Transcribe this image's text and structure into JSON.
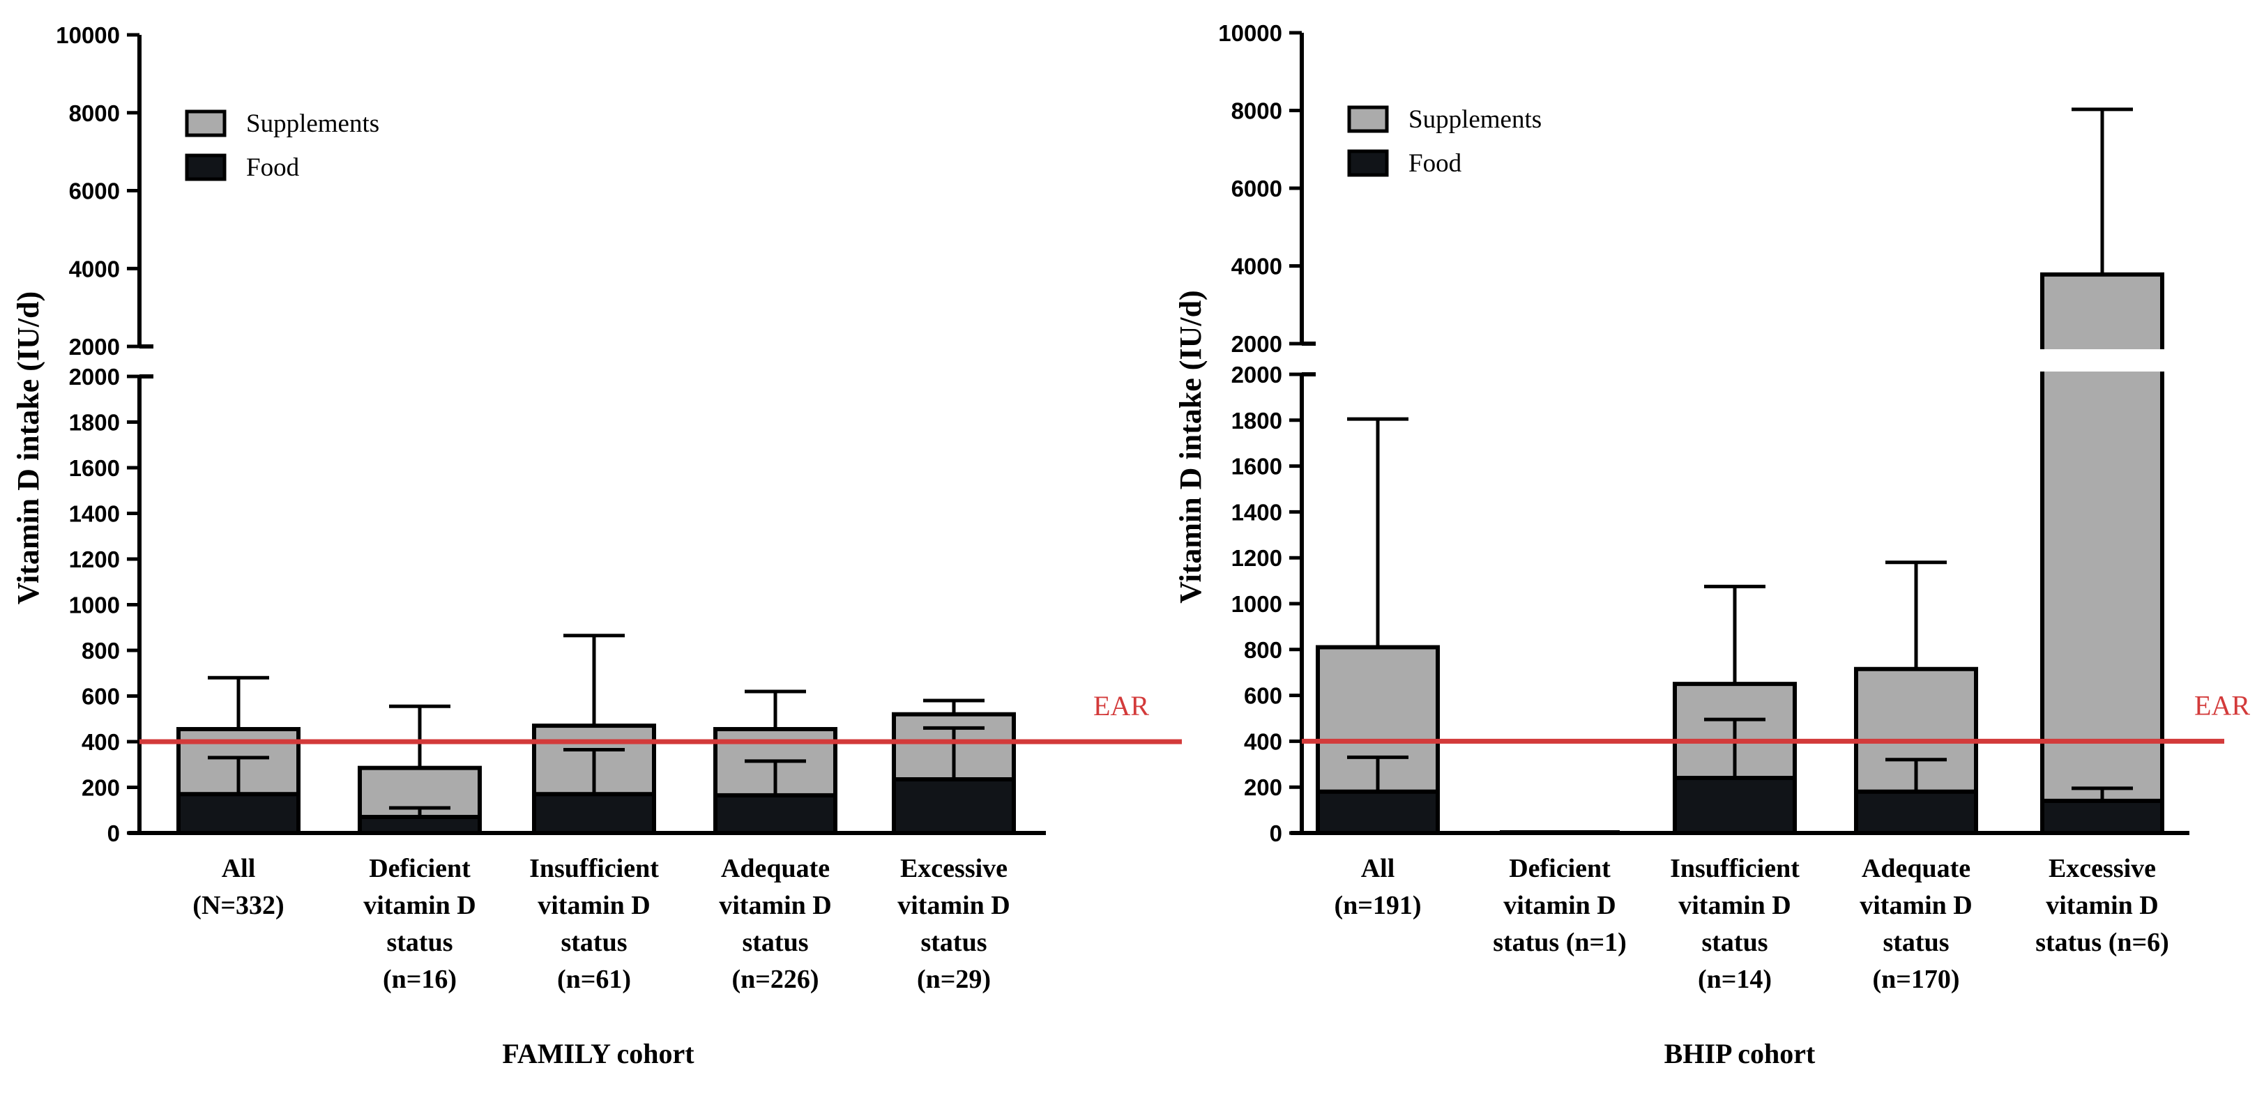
{
  "chart_data": [
    {
      "type": "bar",
      "stacked": true,
      "title": "FAMILY cohort",
      "ylabel": "Vitamin D intake (IU/d)",
      "y_segments": [
        {
          "range": [
            0,
            2000
          ],
          "ticks": [
            "0",
            "200",
            "400",
            "600",
            "800",
            "1000",
            "1200",
            "1400",
            "1600",
            "1800",
            "2000"
          ]
        },
        {
          "range": [
            2000,
            10000
          ],
          "ticks": [
            "2000",
            "4000",
            "6000",
            "8000",
            "10000"
          ]
        }
      ],
      "categories": [
        [
          "All",
          "(N=332)"
        ],
        [
          "Deficient",
          "vitamin D",
          "status",
          "(n=16)"
        ],
        [
          "Insufficient",
          "vitamin D",
          "status",
          "(n=61)"
        ],
        [
          "Adequate",
          "vitamin D",
          "status",
          "(n=226)"
        ],
        [
          "Excessive",
          "vitamin D",
          "status",
          "(n=29)"
        ]
      ],
      "series": [
        {
          "name": "Food",
          "color": "#111418",
          "values": [
            170,
            70,
            170,
            165,
            235
          ],
          "error_upper": [
            330,
            110,
            365,
            315,
            460
          ]
        },
        {
          "name": "Supplements",
          "color": "#ababab",
          "values": [
            285,
            215,
            300,
            290,
            285
          ],
          "error_upper": [
            680,
            555,
            865,
            620,
            580
          ]
        }
      ],
      "reference_line": {
        "label": "EAR",
        "value": 400,
        "color": "#d33a3a"
      },
      "legend": {
        "position": "top-left",
        "items": [
          "Supplements",
          "Food"
        ]
      }
    },
    {
      "type": "bar",
      "stacked": true,
      "title": "BHIP cohort",
      "ylabel": "Vitamin D intake (IU/d)",
      "y_segments": [
        {
          "range": [
            0,
            2000
          ],
          "ticks": [
            "0",
            "200",
            "400",
            "600",
            "800",
            "1000",
            "1200",
            "1400",
            "1600",
            "1800",
            "2000"
          ]
        },
        {
          "range": [
            2000,
            10000
          ],
          "ticks": [
            "2000",
            "4000",
            "6000",
            "8000",
            "10000"
          ]
        }
      ],
      "categories": [
        [
          "All",
          "(n=191)"
        ],
        [
          "Deficient",
          "vitamin D",
          "status (n=1)"
        ],
        [
          "Insufficient",
          "vitamin D",
          "status",
          "(n=14)"
        ],
        [
          "Adequate",
          "vitamin D",
          "status",
          "(n=170)"
        ],
        [
          "Excessive",
          "vitamin D",
          "status (n=6)"
        ]
      ],
      "series": [
        {
          "name": "Food",
          "color": "#111418",
          "values": [
            180,
            0,
            240,
            180,
            140
          ],
          "error_upper": [
            330,
            null,
            495,
            320,
            195
          ]
        },
        {
          "name": "Supplements",
          "color": "#ababab",
          "values": [
            630,
            0,
            410,
            535,
            3640
          ],
          "error_upper": [
            1805,
            null,
            1075,
            1180,
            8030
          ]
        }
      ],
      "reference_line": {
        "label": "EAR",
        "value": 400,
        "color": "#d33a3a"
      },
      "legend": {
        "position": "top-left",
        "items": [
          "Supplements",
          "Food"
        ]
      }
    }
  ]
}
